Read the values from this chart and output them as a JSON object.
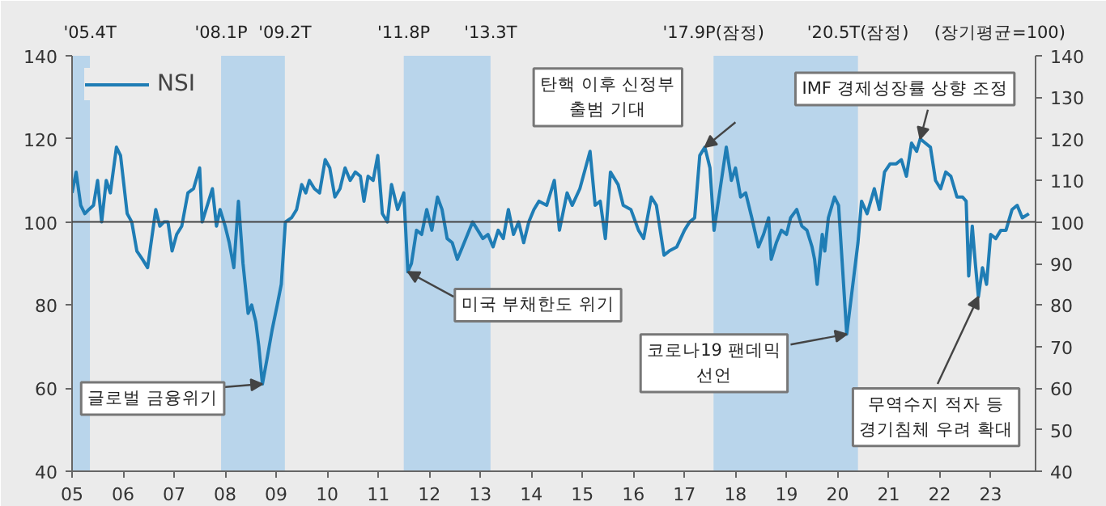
{
  "chart_data": {
    "type": "line",
    "xlim": [
      2005,
      2023.88
    ],
    "ylim": [
      40,
      140
    ],
    "yticks": [
      40,
      60,
      80,
      100,
      120,
      140
    ],
    "y2lim": [
      40,
      140
    ],
    "y2ticks": [
      40,
      50,
      60,
      70,
      80,
      90,
      100,
      110,
      120,
      130,
      140
    ],
    "xticks": [
      {
        "value": 2005,
        "label": "05"
      },
      {
        "value": 2006,
        "label": "06"
      },
      {
        "value": 2007,
        "label": "07"
      },
      {
        "value": 2008,
        "label": "08"
      },
      {
        "value": 2009,
        "label": "09"
      },
      {
        "value": 2010,
        "label": "10"
      },
      {
        "value": 2011,
        "label": "11"
      },
      {
        "value": 2012,
        "label": "12"
      },
      {
        "value": 2013,
        "label": "13"
      },
      {
        "value": 2014,
        "label": "14"
      },
      {
        "value": 2015,
        "label": "15"
      },
      {
        "value": 2016,
        "label": "16"
      },
      {
        "value": 2017,
        "label": "17"
      },
      {
        "value": 2018,
        "label": "18"
      },
      {
        "value": 2019,
        "label": "19"
      },
      {
        "value": 2020,
        "label": "20"
      },
      {
        "value": 2021,
        "label": "21"
      },
      {
        "value": 2022,
        "label": "22"
      },
      {
        "value": 2023,
        "label": "23"
      }
    ],
    "grid": false,
    "legend": "top left",
    "line_style": "solid",
    "marker": "none",
    "series": [
      {
        "name": "NSI",
        "color": "#1f7db5",
        "x": [
          2005.0,
          2005.08,
          2005.17,
          2005.25,
          2005.33,
          2005.42,
          2005.5,
          2005.58,
          2005.67,
          2005.75,
          2005.87,
          2005.95,
          2006.08,
          2006.17,
          2006.27,
          2006.38,
          2006.48,
          2006.56,
          2006.64,
          2006.72,
          2006.8,
          2006.88,
          2006.96,
          2007.05,
          2007.15,
          2007.27,
          2007.38,
          2007.5,
          2007.55,
          2007.65,
          2007.75,
          2007.83,
          2007.9,
          2008.0,
          2008.08,
          2008.17,
          2008.26,
          2008.35,
          2008.45,
          2008.52,
          2008.6,
          2008.66,
          2008.73,
          2008.82,
          2008.92,
          2009.02,
          2009.1,
          2009.18,
          2009.3,
          2009.4,
          2009.5,
          2009.58,
          2009.65,
          2009.75,
          2009.85,
          2009.96,
          2010.05,
          2010.15,
          2010.25,
          2010.35,
          2010.45,
          2010.55,
          2010.65,
          2010.72,
          2010.8,
          2010.9,
          2010.99,
          2011.08,
          2011.18,
          2011.26,
          2011.38,
          2011.5,
          2011.58,
          2011.65,
          2011.75,
          2011.85,
          2011.95,
          2012.05,
          2012.16,
          2012.25,
          2012.35,
          2012.45,
          2012.55,
          2012.65,
          2012.75,
          2012.85,
          2012.95,
          2013.05,
          2013.15,
          2013.25,
          2013.35,
          2013.45,
          2013.55,
          2013.65,
          2013.75,
          2013.85,
          2013.95,
          2014.05,
          2014.15,
          2014.3,
          2014.45,
          2014.55,
          2014.7,
          2014.8,
          2014.95,
          2015.15,
          2015.25,
          2015.35,
          2015.45,
          2015.55,
          2015.7,
          2015.8,
          2015.95,
          2016.1,
          2016.2,
          2016.35,
          2016.45,
          2016.6,
          2016.7,
          2016.85,
          2017.0,
          2017.1,
          2017.2,
          2017.3,
          2017.4,
          2017.5,
          2017.58,
          2017.7,
          2017.82,
          2017.92,
          2018.0,
          2018.1,
          2018.2,
          2018.32,
          2018.45,
          2018.55,
          2018.65,
          2018.7,
          2018.8,
          2018.9,
          2019.0,
          2019.08,
          2019.2,
          2019.3,
          2019.4,
          2019.5,
          2019.55,
          2019.6,
          2019.7,
          2019.75,
          2019.82,
          2019.94,
          2020.02,
          2020.18,
          2020.4,
          2020.47,
          2020.58,
          2020.72,
          2020.82,
          2020.92,
          2021.03,
          2021.15,
          2021.25,
          2021.35,
          2021.45,
          2021.55,
          2021.62,
          2021.72,
          2021.82,
          2021.92,
          2022.02,
          2022.12,
          2022.22,
          2022.34,
          2022.45,
          2022.52,
          2022.57,
          2022.64,
          2022.7,
          2022.76,
          2022.84,
          2022.92,
          2023.0,
          2023.1,
          2023.2,
          2023.3,
          2023.42,
          2023.52,
          2023.62,
          2023.75
        ],
        "values": [
          107,
          112,
          104,
          102,
          103,
          104,
          110,
          100,
          110,
          107,
          118,
          116,
          102,
          100,
          93,
          91,
          89,
          96,
          103,
          99,
          100,
          100,
          93,
          97,
          99,
          107,
          108,
          113,
          100,
          104,
          108,
          99,
          103,
          99,
          95,
          89,
          105,
          90,
          78,
          80,
          76,
          70,
          61,
          67,
          74,
          80,
          85,
          100,
          101,
          103,
          109,
          107,
          110,
          108,
          107,
          115,
          113,
          106,
          108,
          113,
          110,
          112,
          111,
          105,
          111,
          110,
          116,
          102,
          100,
          109,
          103,
          107,
          88,
          90,
          98,
          97,
          103,
          98,
          106,
          103,
          96,
          95,
          91,
          94,
          97,
          100,
          98,
          96,
          97,
          94,
          98,
          96,
          103,
          97,
          100,
          95,
          100,
          103,
          105,
          104,
          110,
          98,
          107,
          104,
          108,
          117,
          104,
          105,
          96,
          112,
          109,
          104,
          103,
          98,
          96,
          106,
          104,
          92,
          93,
          94,
          98,
          100,
          101,
          116,
          118,
          113,
          98,
          108,
          118,
          110,
          113,
          106,
          107,
          101,
          94,
          97,
          101,
          91,
          95,
          98,
          97,
          101,
          103,
          99,
          98,
          94,
          91,
          85,
          97,
          93,
          101,
          106,
          104,
          73,
          95,
          105,
          102,
          108,
          103,
          112,
          114,
          114,
          115,
          111,
          119,
          117,
          120,
          119,
          118,
          110,
          108,
          112,
          111,
          106,
          106,
          105,
          87,
          99,
          90,
          82,
          89,
          85,
          97,
          96,
          98,
          98,
          103,
          104,
          101,
          102
        ]
      }
    ],
    "bands": [
      {
        "axis": "x",
        "from": 2005.0,
        "to": 2005.35,
        "color": "#b9d5eb"
      },
      {
        "axis": "x",
        "from": 2007.92,
        "to": 2009.17,
        "color": "#b9d5eb"
      },
      {
        "axis": "x",
        "from": 2011.5,
        "to": 2013.2,
        "color": "#b9d5eb"
      },
      {
        "axis": "x",
        "from": 2017.57,
        "to": 2020.4,
        "color": "#b9d5eb"
      }
    ],
    "ref_lines": [
      {
        "axis": "y",
        "value": 100,
        "color": "#444444"
      }
    ],
    "annotations": [
      "'05.4T",
      "'08.1P",
      "'09.2T",
      "'11.8P",
      "'13.3T",
      "'17.9P(잠정)",
      "'20.5T(잠정)",
      "(장기평균=100)",
      {
        "text": "글로벌 금융위기",
        "x": 2008.73,
        "y": 61
      },
      {
        "text": "미국 부채한도 위기",
        "x": 2011.58,
        "y": 88
      },
      {
        "text": "탄핵 이후 신정부\n출범 기대",
        "x": 2017.4,
        "y": 118
      },
      {
        "text": "IMF 경제성장률 상향 조정",
        "x": 2021.62,
        "y": 120
      },
      {
        "text": "코로나19 팬데믹\n선언",
        "x": 2020.18,
        "y": 73
      },
      {
        "text": "무역수지 적자 등\n경기침체 우려 확대",
        "x": 2022.76,
        "y": 82
      }
    ]
  }
}
